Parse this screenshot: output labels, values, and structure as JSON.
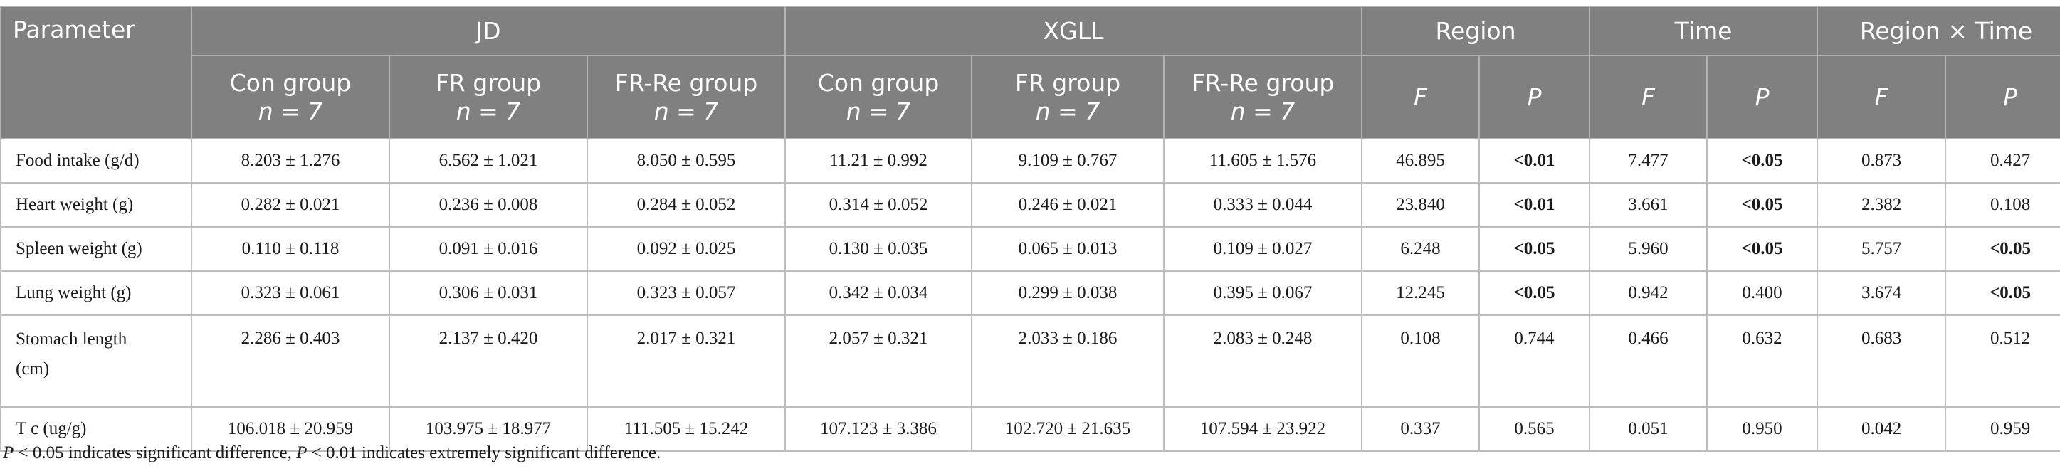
{
  "header": {
    "parameter": "Parameter",
    "groups": [
      "JD",
      "XGLL",
      "Region",
      "Time",
      "Region × Time"
    ],
    "sub_groups": [
      "Con group",
      "FR group",
      "FR-Re group",
      "Con group",
      "FR group",
      "FR-Re group"
    ],
    "n_label": "n = 7",
    "stat_labels": [
      "F",
      "P",
      "F",
      "P",
      "F",
      "P"
    ]
  },
  "rows": [
    {
      "label": "Food intake (g/d)",
      "cells": [
        "8.203 ± 1.276",
        "6.562 ± 1.021",
        "8.050 ± 0.595",
        "11.21 ± 0.992",
        "9.109 ± 0.767",
        "11.605 ± 1.576",
        "46.895",
        "<0.01",
        "7.477",
        "<0.05",
        "0.873",
        "0.427"
      ]
    },
    {
      "label": "Heart weight (g)",
      "cells": [
        "0.282 ± 0.021",
        "0.236 ± 0.008",
        "0.284 ± 0.052",
        "0.314 ± 0.052",
        "0.246 ± 0.021",
        "0.333 ± 0.044",
        "23.840",
        "<0.01",
        "3.661",
        "<0.05",
        "2.382",
        "0.108"
      ]
    },
    {
      "label": "Spleen weight (g)",
      "cells": [
        "0.110 ± 0.118",
        "0.091 ± 0.016",
        "0.092 ± 0.025",
        "0.130 ± 0.035",
        "0.065 ± 0.013",
        "0.109 ± 0.027",
        "6.248",
        "<0.05",
        "5.960",
        "<0.05",
        "5.757",
        "<0.05"
      ]
    },
    {
      "label": "Lung weight (g)",
      "cells": [
        "0.323 ± 0.061",
        "0.306 ± 0.031",
        "0.323 ± 0.057",
        "0.342 ± 0.034",
        "0.299 ± 0.038",
        "0.395 ± 0.067",
        "12.245",
        "<0.05",
        "0.942",
        "0.400",
        "3.674",
        "<0.05"
      ]
    },
    {
      "label_line1": "Stomach length",
      "label_line2": "(cm)",
      "cells": [
        "2.286 ± 0.403",
        "2.137 ± 0.420",
        "2.017 ± 0.321",
        "2.057 ± 0.321",
        "2.033 ± 0.186",
        "2.083 ± 0.248",
        "0.108",
        "0.744",
        "0.466",
        "0.632",
        "0.683",
        "0.512"
      ]
    },
    {
      "label": "T c (ug/g)",
      "cells": [
        "106.018 ± 20.959",
        "103.975 ± 18.977",
        "111.505 ± 15.242",
        "107.123 ± 3.386",
        "102.720 ± 21.635",
        "107.594 ± 23.922",
        "0.337",
        "0.565",
        "0.051",
        "0.950",
        "0.042",
        "0.959"
      ]
    }
  ],
  "footnote": {
    "p1": "P",
    "t1": " < 0.05 indicates significant difference, ",
    "p2": "P",
    "t2": " < 0.01 indicates extremely significant difference."
  }
}
